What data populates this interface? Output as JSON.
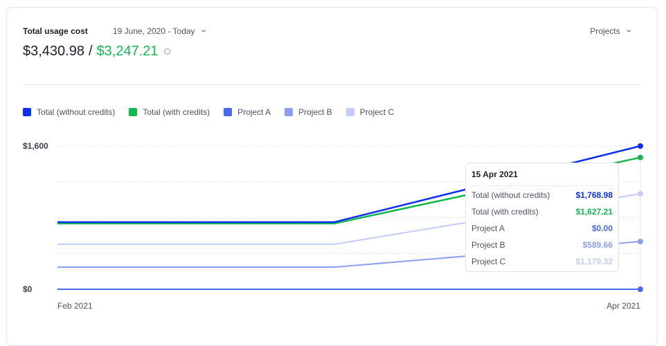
{
  "header": {
    "title": "Total usage cost",
    "date_range": "19 June, 2020 - Today",
    "projects_label": "Projects",
    "total_without": "$3,430.98",
    "separator": "/",
    "total_with": "$3,247.21"
  },
  "colors": {
    "total_without": "#0a2ff0",
    "total_with": "#12b84f",
    "project_a": "#4a67ef",
    "project_b": "#8a9ef5",
    "project_c": "#c3cdfa"
  },
  "chart_data": {
    "type": "line",
    "categories": [
      "Feb 2021",
      "",
      "Apr 2021"
    ],
    "x_tick_labels": [
      "Feb 2021",
      "Apr 2021"
    ],
    "y_tick_labels": [
      "$1,600",
      "$0"
    ],
    "ylim": [
      0,
      1768.98
    ],
    "grid": true,
    "legend_position": "top-left",
    "series": [
      {
        "name": "Total (without credits)",
        "values": [
          829,
          829,
          1768.98
        ]
      },
      {
        "name": "Total (with credits)",
        "values": [
          812,
          812,
          1627.21
        ]
      },
      {
        "name": "Project A",
        "values": [
          0,
          0,
          0
        ]
      },
      {
        "name": "Project B",
        "values": [
          273,
          273,
          589.66
        ]
      },
      {
        "name": "Project C",
        "values": [
          555,
          555,
          1179.32
        ]
      }
    ]
  },
  "tooltip": {
    "date": "15 Apr 2021",
    "rows": [
      {
        "label": "Total (without credits)",
        "value": "$1,768.98"
      },
      {
        "label": "Total (with credits)",
        "value": "$1,627.21"
      },
      {
        "label": "Project A",
        "value": "$0.00"
      },
      {
        "label": "Project B",
        "value": "$589.66"
      },
      {
        "label": "Project C",
        "value": "$1,179.32"
      }
    ]
  }
}
